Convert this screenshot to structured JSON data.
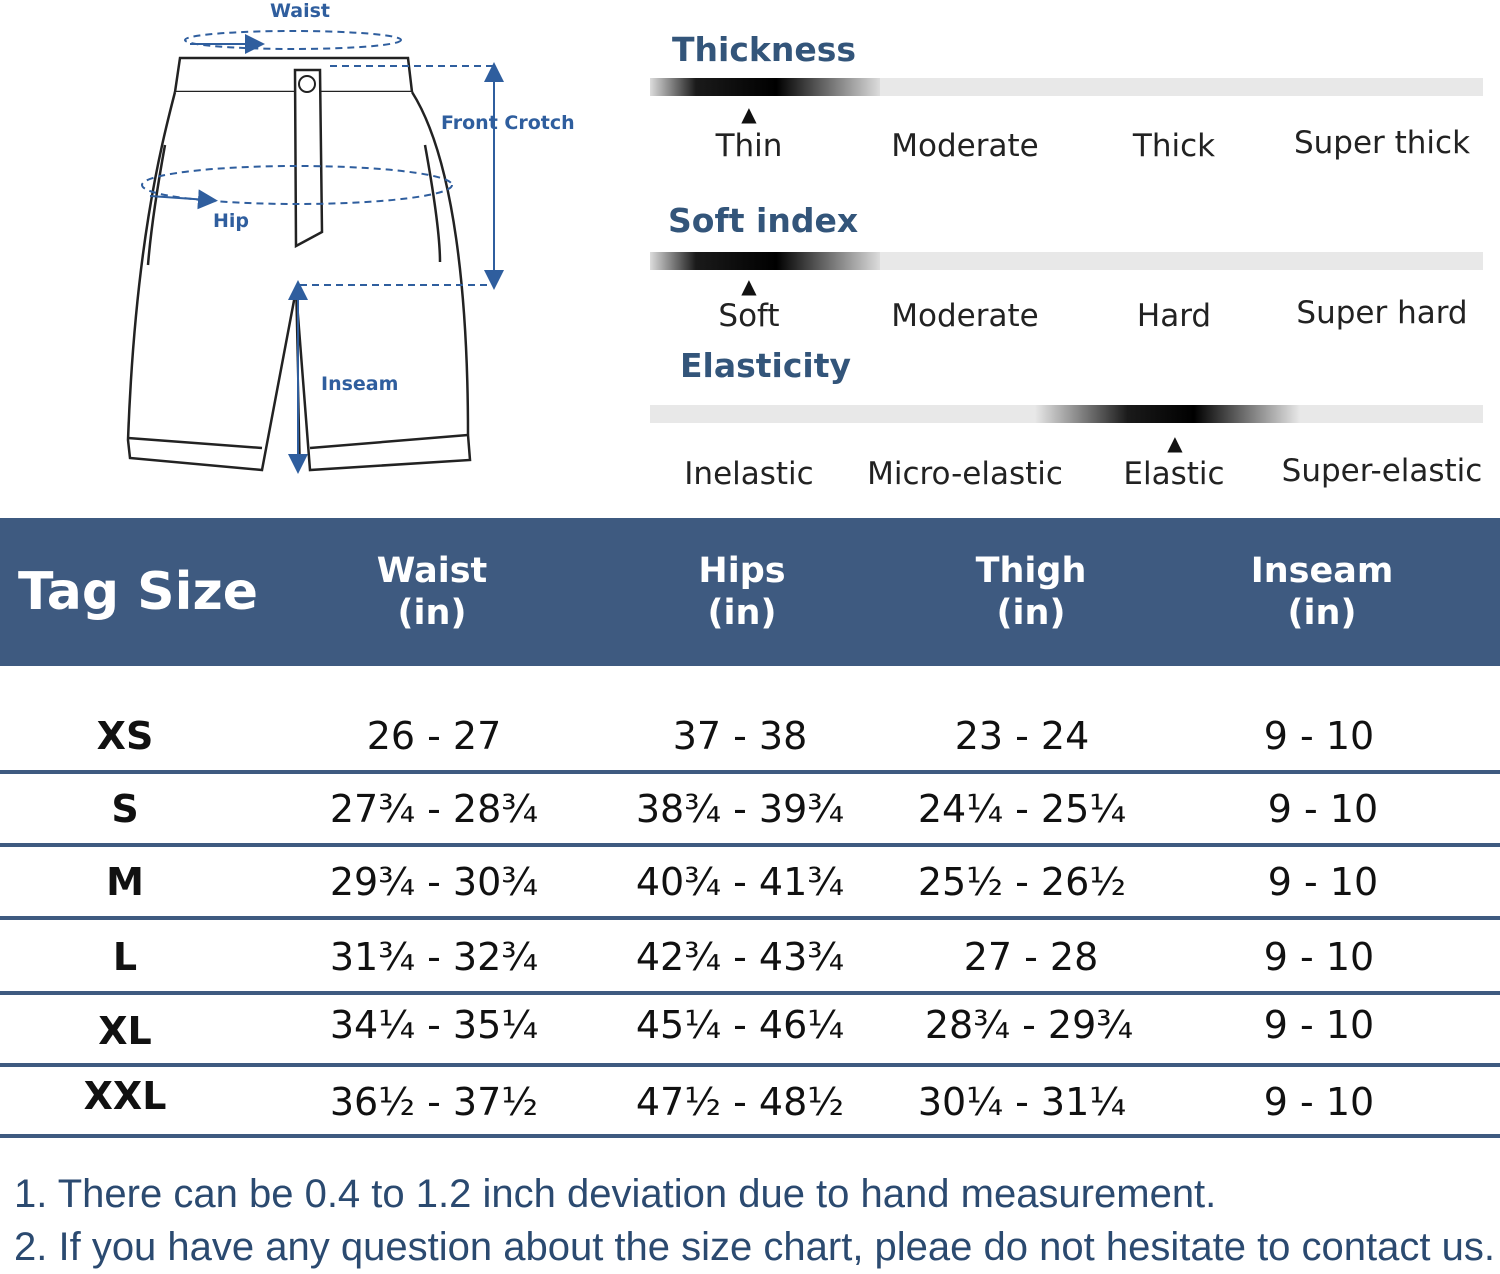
{
  "diagram": {
    "labels": {
      "waist": "Waist",
      "front_crotch": "Front Crotch",
      "hip": "Hip",
      "inseam": "Inseam"
    },
    "accent_color": "#2f5e9e"
  },
  "attributes": [
    {
      "title": "Thickness",
      "levels": [
        "Thin",
        "Moderate",
        "Thick",
        "Super thick"
      ],
      "selected_index": 0,
      "selected": "Thin"
    },
    {
      "title": "Soft index",
      "levels": [
        "Soft",
        "Moderate",
        "Hard",
        "Super hard"
      ],
      "selected_index": 0,
      "selected": "Soft"
    },
    {
      "title": "Elasticity",
      "levels": [
        "Inelastic",
        "Micro-elastic",
        "Elastic",
        "Super-elastic"
      ],
      "selected_index": 2,
      "selected": "Elastic"
    }
  ],
  "size_table": {
    "header_color": "#3e5a80",
    "headers": {
      "tag_size": "Tag Size",
      "columns": [
        {
          "name": "Waist",
          "unit": "(in)"
        },
        {
          "name": "Hips",
          "unit": "(in)"
        },
        {
          "name": "Thigh",
          "unit": "(in)"
        },
        {
          "name": "Inseam",
          "unit": "(in)"
        }
      ]
    },
    "rows": [
      {
        "size": "XS",
        "waist": "26 - 27",
        "hips": "37 - 38",
        "thigh": "23 - 24",
        "inseam": "9 - 10"
      },
      {
        "size": "S",
        "waist": "27¾ - 28¾",
        "hips": "38¾ - 39¾",
        "thigh": "24¼ - 25¼",
        "inseam": "9 - 10"
      },
      {
        "size": "M",
        "waist": "29¾ - 30¾",
        "hips": "40¾ - 41¾",
        "thigh": "25½ - 26½",
        "inseam": "9 - 10"
      },
      {
        "size": "L",
        "waist": "31¾ - 32¾",
        "hips": "42¾ - 43¾",
        "thigh": "27 - 28",
        "inseam": "9 - 10"
      },
      {
        "size": "XL",
        "waist": "34¼ - 35¼",
        "hips": "45¼ - 46¼",
        "thigh": "28¾ - 29¾",
        "inseam": "9 - 10"
      },
      {
        "size": "XXL",
        "waist": "36½ - 37½",
        "hips": "47½ - 48½",
        "thigh": "30¼ - 31¼",
        "inseam": "9 - 10"
      }
    ]
  },
  "notes": [
    "1. There can be 0.4 to 1.2 inch deviation due to hand measurement.",
    "2. If you have any question about the size chart, pleae do not hesitate to contact us."
  ]
}
